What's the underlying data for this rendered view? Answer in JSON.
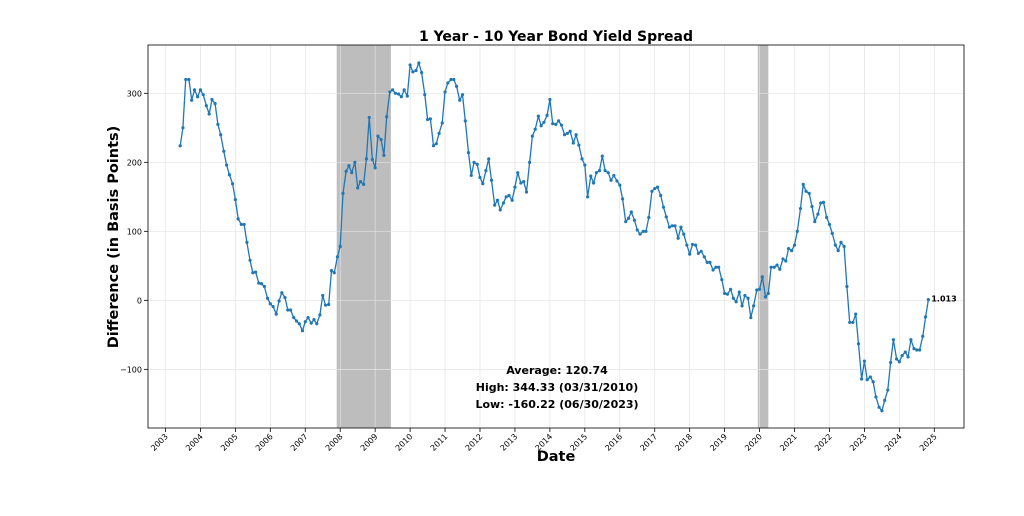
{
  "chart_data": {
    "type": "line",
    "title": "1 Year - 10 Year Bond Yield Spread",
    "xlabel": "Date",
    "ylabel": "Difference (in Basis Points)",
    "xlim": [
      2002.5,
      2025.85
    ],
    "ylim": [
      -185,
      370
    ],
    "x_ticks": [
      "2003",
      "2004",
      "2005",
      "2006",
      "2007",
      "2008",
      "2009",
      "2010",
      "2011",
      "2012",
      "2013",
      "2014",
      "2015",
      "2016",
      "2017",
      "2018",
      "2019",
      "2020",
      "2021",
      "2022",
      "2023",
      "2024",
      "2025"
    ],
    "y_ticks": [
      -100,
      0,
      100,
      200,
      300
    ],
    "grid": true,
    "shaded_regions": [
      {
        "start": 2007.9,
        "end": 2009.45
      },
      {
        "start": 2019.95,
        "end": 2020.25
      }
    ],
    "line_color": "#1f77b4",
    "shade_color": "#bdbdbd",
    "annotations": {
      "average": "Average: 120.74",
      "high": "High: 344.33 (03/31/2010)",
      "low": "Low: -160.22 (06/30/2023)",
      "end_value": "1.013"
    },
    "series": [
      {
        "x": [
          2003.42,
          2003.5,
          2003.58,
          2003.67,
          2003.75,
          2003.83,
          2003.92,
          2004.0,
          2004.08,
          2004.17,
          2004.25,
          2004.33,
          2004.42,
          2004.5,
          2004.58,
          2004.67,
          2004.75,
          2004.83,
          2004.92,
          2005.0,
          2005.08,
          2005.17,
          2005.25,
          2005.33,
          2005.42,
          2005.5,
          2005.58,
          2005.67,
          2005.75,
          2005.83,
          2005.92,
          2006.0,
          2006.08,
          2006.17,
          2006.25,
          2006.33,
          2006.42,
          2006.5,
          2006.58,
          2006.67,
          2006.75,
          2006.83,
          2006.92,
          2007.0,
          2007.08,
          2007.17,
          2007.25,
          2007.33,
          2007.42,
          2007.5,
          2007.58,
          2007.67,
          2007.75,
          2007.83,
          2007.92,
          2008.0,
          2008.08,
          2008.17,
          2008.25,
          2008.33,
          2008.42,
          2008.5,
          2008.58,
          2008.67,
          2008.75,
          2008.83,
          2008.92,
          2009.0,
          2009.08,
          2009.17,
          2009.25,
          2009.33,
          2009.42,
          2009.5,
          2009.58,
          2009.67,
          2009.75,
          2009.83,
          2009.92,
          2010.0,
          2010.08,
          2010.17,
          2010.25,
          2010.33,
          2010.42,
          2010.5,
          2010.58,
          2010.67,
          2010.75,
          2010.83,
          2010.92,
          2011.0,
          2011.08,
          2011.17,
          2011.25,
          2011.33,
          2011.42,
          2011.5,
          2011.58,
          2011.67,
          2011.75,
          2011.83,
          2011.92,
          2012.0,
          2012.08,
          2012.17,
          2012.25,
          2012.33,
          2012.42,
          2012.5,
          2012.58,
          2012.67,
          2012.75,
          2012.83,
          2012.92,
          2013.0,
          2013.08,
          2013.17,
          2013.25,
          2013.33,
          2013.42,
          2013.5,
          2013.58,
          2013.67,
          2013.75,
          2013.83,
          2013.92,
          2014.0,
          2014.08,
          2014.17,
          2014.25,
          2014.33,
          2014.42,
          2014.5,
          2014.58,
          2014.67,
          2014.75,
          2014.83,
          2014.92,
          2015.0,
          2015.08,
          2015.17,
          2015.25,
          2015.33,
          2015.42,
          2015.5,
          2015.58,
          2015.67,
          2015.75,
          2015.83,
          2015.92,
          2016.0,
          2016.08,
          2016.17,
          2016.25,
          2016.33,
          2016.42,
          2016.5,
          2016.58,
          2016.67,
          2016.75,
          2016.83,
          2016.92,
          2017.0,
          2017.08,
          2017.17,
          2017.25,
          2017.33,
          2017.42,
          2017.5,
          2017.58,
          2017.67,
          2017.75,
          2017.83,
          2017.92,
          2018.0,
          2018.08,
          2018.17,
          2018.25,
          2018.33,
          2018.42,
          2018.5,
          2018.58,
          2018.67,
          2018.75,
          2018.83,
          2018.92,
          2019.0,
          2019.08,
          2019.17,
          2019.25,
          2019.33,
          2019.42,
          2019.5,
          2019.58,
          2019.67,
          2019.75,
          2019.83,
          2019.92,
          2020.0,
          2020.08,
          2020.17,
          2020.25,
          2020.33,
          2020.42,
          2020.5,
          2020.58,
          2020.67,
          2020.75,
          2020.83,
          2020.92,
          2021.0,
          2021.08,
          2021.17,
          2021.25,
          2021.33,
          2021.42,
          2021.5,
          2021.58,
          2021.67,
          2021.75,
          2021.83,
          2021.92,
          2022.0,
          2022.08,
          2022.17,
          2022.25,
          2022.33,
          2022.42,
          2022.5,
          2022.58,
          2022.67,
          2022.75,
          2022.83,
          2022.92,
          2023.0,
          2023.08,
          2023.17,
          2023.25,
          2023.33,
          2023.42,
          2023.5,
          2023.58,
          2023.67,
          2023.75,
          2023.83,
          2023.92,
          2024.0,
          2024.08,
          2024.17,
          2024.25,
          2024.33,
          2024.42,
          2024.5,
          2024.58,
          2024.67,
          2024.75,
          2024.83
        ],
        "y": [
          224,
          250,
          320,
          320,
          290,
          305,
          295,
          305,
          298,
          282,
          270,
          291,
          285,
          255,
          240,
          216,
          196,
          182,
          169,
          146,
          118,
          110,
          110,
          84,
          58,
          40,
          41,
          25,
          24,
          20,
          3,
          -5,
          -9,
          -20,
          -1,
          11,
          4,
          -14,
          -14,
          -25,
          -30,
          -34,
          -44,
          -31,
          -25,
          -33,
          -28,
          -34,
          -21,
          7,
          -7,
          -6,
          43,
          40,
          63,
          78,
          155,
          187,
          195,
          185,
          200,
          163,
          172,
          168,
          205,
          265,
          204,
          192,
          238,
          233,
          210,
          266,
          302,
          305,
          300,
          299,
          295,
          305,
          296,
          341,
          331,
          333,
          344,
          330,
          298,
          262,
          263,
          224,
          227,
          242,
          257,
          302,
          315,
          320,
          320,
          310,
          290,
          298,
          260,
          214,
          181,
          200,
          197,
          178,
          169,
          188,
          205,
          174,
          138,
          145,
          131,
          141,
          150,
          152,
          145,
          164,
          185,
          170,
          172,
          157,
          200,
          238,
          248,
          267,
          253,
          258,
          268,
          291,
          256,
          255,
          260,
          254,
          240,
          242,
          245,
          228,
          240,
          225,
          205,
          196,
          150,
          180,
          170,
          185,
          188,
          209,
          188,
          185,
          174,
          181,
          173,
          167,
          147,
          114,
          119,
          128,
          116,
          102,
          96,
          100,
          100,
          120,
          158,
          162,
          164,
          152,
          135,
          121,
          106,
          108,
          108,
          90,
          106,
          96,
          80,
          67,
          81,
          80,
          68,
          71,
          63,
          55,
          55,
          44,
          48,
          48,
          30,
          10,
          9,
          16,
          3,
          -2,
          12,
          -8,
          7,
          3,
          -25,
          -8,
          15,
          16,
          34,
          5,
          10,
          48,
          48,
          51,
          45,
          60,
          57,
          75,
          72,
          80,
          100,
          133,
          168,
          158,
          155,
          136,
          114,
          125,
          141,
          142,
          120,
          110,
          97,
          80,
          72,
          84,
          78,
          20,
          -32,
          -32,
          -20,
          -63,
          -114,
          -88,
          -115,
          -111,
          -118,
          -140,
          -155,
          -160,
          -145,
          -130,
          -90,
          -57,
          -85,
          -89,
          -80,
          -75,
          -82,
          -57,
          -70,
          -72,
          -72,
          -52,
          -24,
          1.013
        ]
      }
    ]
  }
}
